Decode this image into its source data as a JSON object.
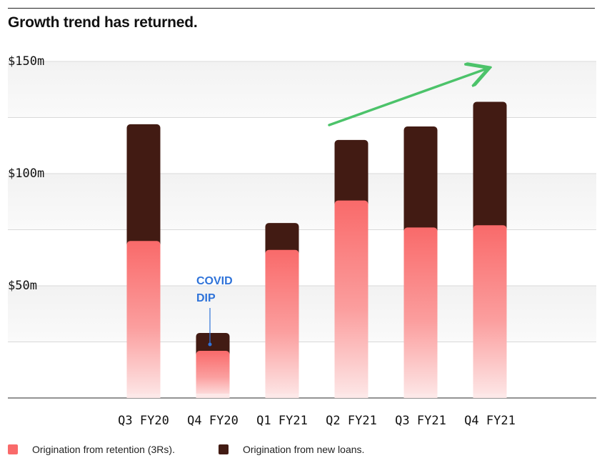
{
  "title": "Growth trend has returned.",
  "colors": {
    "retention": "#f96a6a",
    "new_loans": "#421b13",
    "trend_arrow": "#4cc36a",
    "annotation": "#2f73d9",
    "grid": "#d9d9d9",
    "band": "#f4f4f4"
  },
  "chart_data": {
    "type": "bar",
    "stacked": true,
    "categories": [
      "Q3 FY20",
      "Q4 FY20",
      "Q1 FY21",
      "Q2 FY21",
      "Q3 FY21",
      "Q4 FY21"
    ],
    "series": [
      {
        "name": "Origination from retention (3Rs).",
        "values": [
          70,
          21,
          66,
          88,
          76,
          77
        ]
      },
      {
        "name": "Origination from new loans.",
        "values": [
          52,
          8,
          12,
          27,
          45,
          55
        ]
      }
    ],
    "ylim": [
      0,
      150
    ],
    "yticks": [
      0,
      50,
      100,
      150
    ],
    "ytick_labels": [
      "",
      "$50m",
      "$100m",
      "$150m"
    ],
    "grid_step": 25,
    "grid": true,
    "annotation": {
      "lines": [
        "COVID",
        "DIP"
      ],
      "category": "Q4 FY20"
    },
    "trend_arrow": {
      "from_category": "Q2 FY21",
      "to_category": "Q4 FY21",
      "direction": "up"
    }
  },
  "legend": [
    {
      "label": "Origination from retention (3Rs).",
      "color_key": "retention"
    },
    {
      "label": "Origination from new loans.",
      "color_key": "new_loans"
    }
  ]
}
